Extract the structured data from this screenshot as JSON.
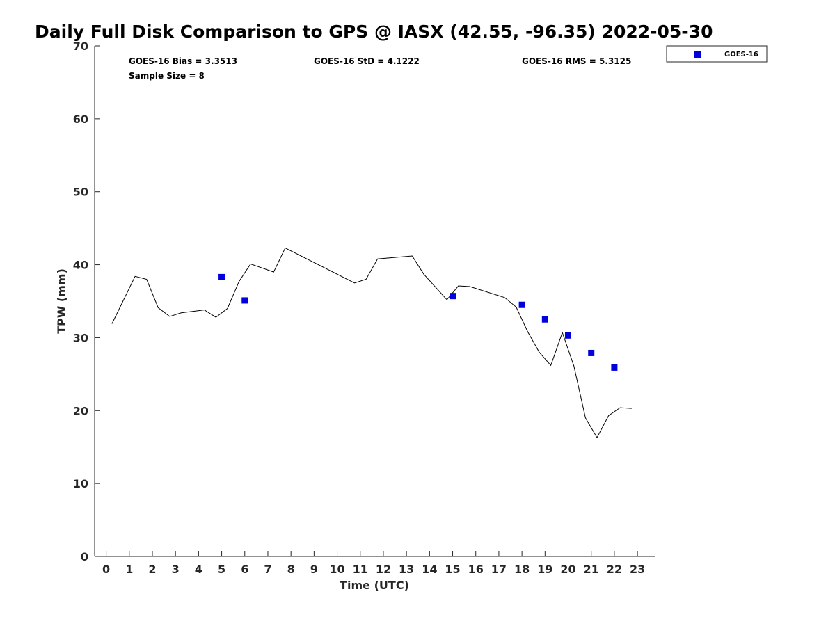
{
  "colors": {
    "goes_marker": "#0000dd",
    "gps_line": "#000000",
    "axis": "#262626"
  },
  "chart_data": {
    "type": "line",
    "title": "Daily Full Disk Comparison to GPS @ IASX (42.55, -96.35) 2022-05-30",
    "xlabel": "Time (UTC)",
    "ylabel": "TPW (mm)",
    "xlim": [
      -0.5,
      23.75
    ],
    "ylim": [
      0,
      70
    ],
    "xticks": [
      0,
      1,
      2,
      3,
      4,
      5,
      6,
      7,
      8,
      9,
      10,
      11,
      12,
      13,
      14,
      15,
      16,
      17,
      18,
      19,
      20,
      21,
      22,
      23
    ],
    "yticks": [
      0,
      10,
      20,
      30,
      40,
      50,
      60,
      70
    ],
    "grid": false,
    "legend_position": "top-right outside",
    "stats": {
      "bias": "GOES-16 Bias = 3.3513",
      "std": "GOES-16 StD = 4.1222",
      "rms": "GOES-16 RMS = 5.3125",
      "sample": "Sample Size = 8"
    },
    "series": [
      {
        "name": "",
        "kind": "line",
        "points": [
          [
            0.25,
            31.9
          ],
          [
            1.25,
            38.4
          ],
          [
            1.75,
            38.0
          ],
          [
            2.25,
            34.1
          ],
          [
            2.75,
            32.9
          ],
          [
            3.25,
            33.4
          ],
          [
            4.25,
            33.8
          ],
          [
            4.75,
            32.8
          ],
          [
            5.25,
            34.0
          ],
          [
            5.75,
            37.7
          ],
          [
            6.25,
            40.1
          ],
          [
            7.25,
            39.0
          ],
          [
            7.75,
            42.3
          ],
          [
            10.75,
            37.5
          ],
          [
            11.25,
            38.0
          ],
          [
            11.75,
            40.8
          ],
          [
            13.25,
            41.2
          ],
          [
            13.75,
            38.7
          ],
          [
            14.75,
            35.2
          ],
          [
            15.25,
            37.1
          ],
          [
            15.75,
            37.0
          ],
          [
            17.25,
            35.5
          ],
          [
            17.75,
            34.2
          ],
          [
            18.25,
            30.8
          ],
          [
            18.75,
            28.0
          ],
          [
            19.25,
            26.2
          ],
          [
            19.75,
            30.7
          ],
          [
            20.25,
            26.1
          ],
          [
            20.75,
            19.0
          ],
          [
            21.25,
            16.3
          ],
          [
            21.75,
            19.3
          ],
          [
            22.25,
            20.4
          ],
          [
            22.75,
            20.3
          ]
        ]
      },
      {
        "name": "GOES-16",
        "kind": "marker",
        "points": [
          [
            5,
            38.3
          ],
          [
            6,
            35.1
          ],
          [
            15,
            35.7
          ],
          [
            18,
            34.5
          ],
          [
            19,
            32.5
          ],
          [
            20,
            30.3
          ],
          [
            21,
            27.9
          ],
          [
            22,
            25.9
          ]
        ]
      }
    ]
  }
}
